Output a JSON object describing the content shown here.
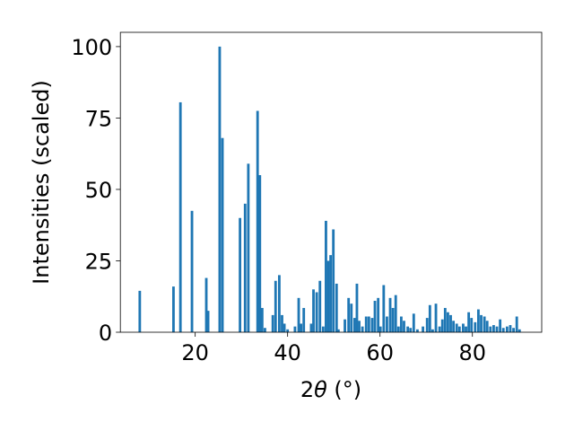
{
  "chart_data": {
    "type": "bar",
    "xlabel_main": "2",
    "xlabel_theta": "θ",
    "xlabel_unit": " (°)",
    "ylabel": "Intensities (scaled)",
    "xlim": [
      3.8,
      95
    ],
    "ylim": [
      0,
      105
    ],
    "bar_width_data": 0.55,
    "color": "#1f77b4",
    "xticks": [
      20,
      40,
      60,
      80
    ],
    "yticks": [
      0,
      25,
      50,
      75,
      100
    ],
    "grid": false,
    "x": [
      8.0,
      15.3,
      16.8,
      19.3,
      22.4,
      22.8,
      25.3,
      25.9,
      29.7,
      30.8,
      31.5,
      33.5,
      34.0,
      34.5,
      35.1,
      36.8,
      37.4,
      38.2,
      38.8,
      39.3,
      40.0,
      41.6,
      42.4,
      42.9,
      43.5,
      45.1,
      45.6,
      46.3,
      47.0,
      47.7,
      48.3,
      48.8,
      49.3,
      49.9,
      50.6,
      51.0,
      52.4,
      53.2,
      53.8,
      54.5,
      55.0,
      55.5,
      56.2,
      57.0,
      57.6,
      58.3,
      58.9,
      59.6,
      60.1,
      60.8,
      61.5,
      62.2,
      62.8,
      63.4,
      64.0,
      64.6,
      65.2,
      66.0,
      66.6,
      67.3,
      68.1,
      69.3,
      70.2,
      70.8,
      71.4,
      72.1,
      72.9,
      73.5,
      74.1,
      74.7,
      75.3,
      75.9,
      76.6,
      77.2,
      78.0,
      78.6,
      79.2,
      79.8,
      80.6,
      81.3,
      81.9,
      82.6,
      83.2,
      83.9,
      84.6,
      85.3,
      86.0,
      86.7,
      87.5,
      88.2,
      88.9,
      89.6,
      90.2
    ],
    "values": [
      14.5,
      16,
      80.5,
      42.5,
      19,
      7.5,
      100,
      68,
      40,
      45,
      59,
      77.5,
      55,
      8.5,
      1.5,
      6,
      18,
      20,
      6,
      3,
      1,
      2,
      12,
      3,
      8.5,
      3,
      15,
      14,
      18,
      2,
      39,
      25,
      27,
      36,
      17,
      1,
      4.5,
      12,
      10,
      5,
      17,
      4,
      2,
      5.5,
      5.5,
      5,
      11,
      12,
      2,
      16.5,
      5.5,
      12,
      8.5,
      13,
      2,
      5.5,
      4,
      2,
      1.5,
      6.5,
      1,
      2,
      5,
      9.5,
      1,
      10,
      2,
      4.5,
      8.5,
      7,
      6,
      4,
      3,
      2,
      3,
      2,
      7,
      5,
      3.5,
      8,
      6,
      5.5,
      4,
      2,
      2.5,
      2,
      4.5,
      1.5,
      2,
      2.5,
      1.5,
      5.5,
      1
    ]
  }
}
